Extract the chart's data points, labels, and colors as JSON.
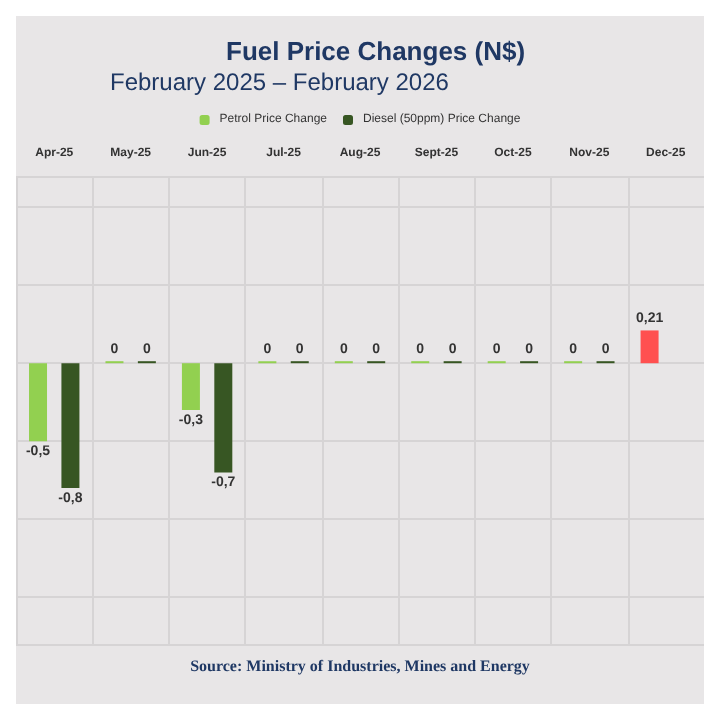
{
  "chart_data": {
    "type": "bar",
    "title": "Fuel Price Changes (N$)",
    "subtitle": "February 2025 – February 2026",
    "categories": [
      "Apr-25",
      "May-25",
      "Jun-25",
      "Jul-25",
      "Aug-25",
      "Sept-25",
      "Oct-25",
      "Nov-25",
      "Dec-25"
    ],
    "series": [
      {
        "name": "Petrol Price Change",
        "color": "#92d050",
        "colors": [
          "#92d050",
          "#92d050",
          "#92d050",
          "#92d050",
          "#92d050",
          "#92d050",
          "#92d050",
          "#92d050",
          "#ff5050"
        ],
        "values": [
          -0.5,
          0,
          -0.3,
          0,
          0,
          0,
          0,
          0,
          0.21
        ],
        "value_labels": [
          "-0,5",
          "0",
          "-0,3",
          "0",
          "0",
          "0",
          "0",
          "0",
          "0,21"
        ]
      },
      {
        "name": "Diesel (50ppm) Price Change",
        "color": "#375623",
        "colors": [
          "#375623",
          "#375623",
          "#375623",
          "#375623",
          "#375623",
          "#375623",
          "#375623",
          "#375623",
          "#375623"
        ],
        "values": [
          -0.8,
          0,
          -0.7,
          0,
          0,
          0,
          0,
          0,
          null
        ],
        "value_labels": [
          "-0,8",
          "0",
          "-0,7",
          "0",
          "0",
          "0",
          "0",
          "0",
          null
        ]
      }
    ],
    "relative": false,
    "grid": true,
    "legend": "top",
    "tick_labels": "x",
    "annotations": [
      "Source: Ministry of Industries, Mines and Energy"
    ]
  }
}
